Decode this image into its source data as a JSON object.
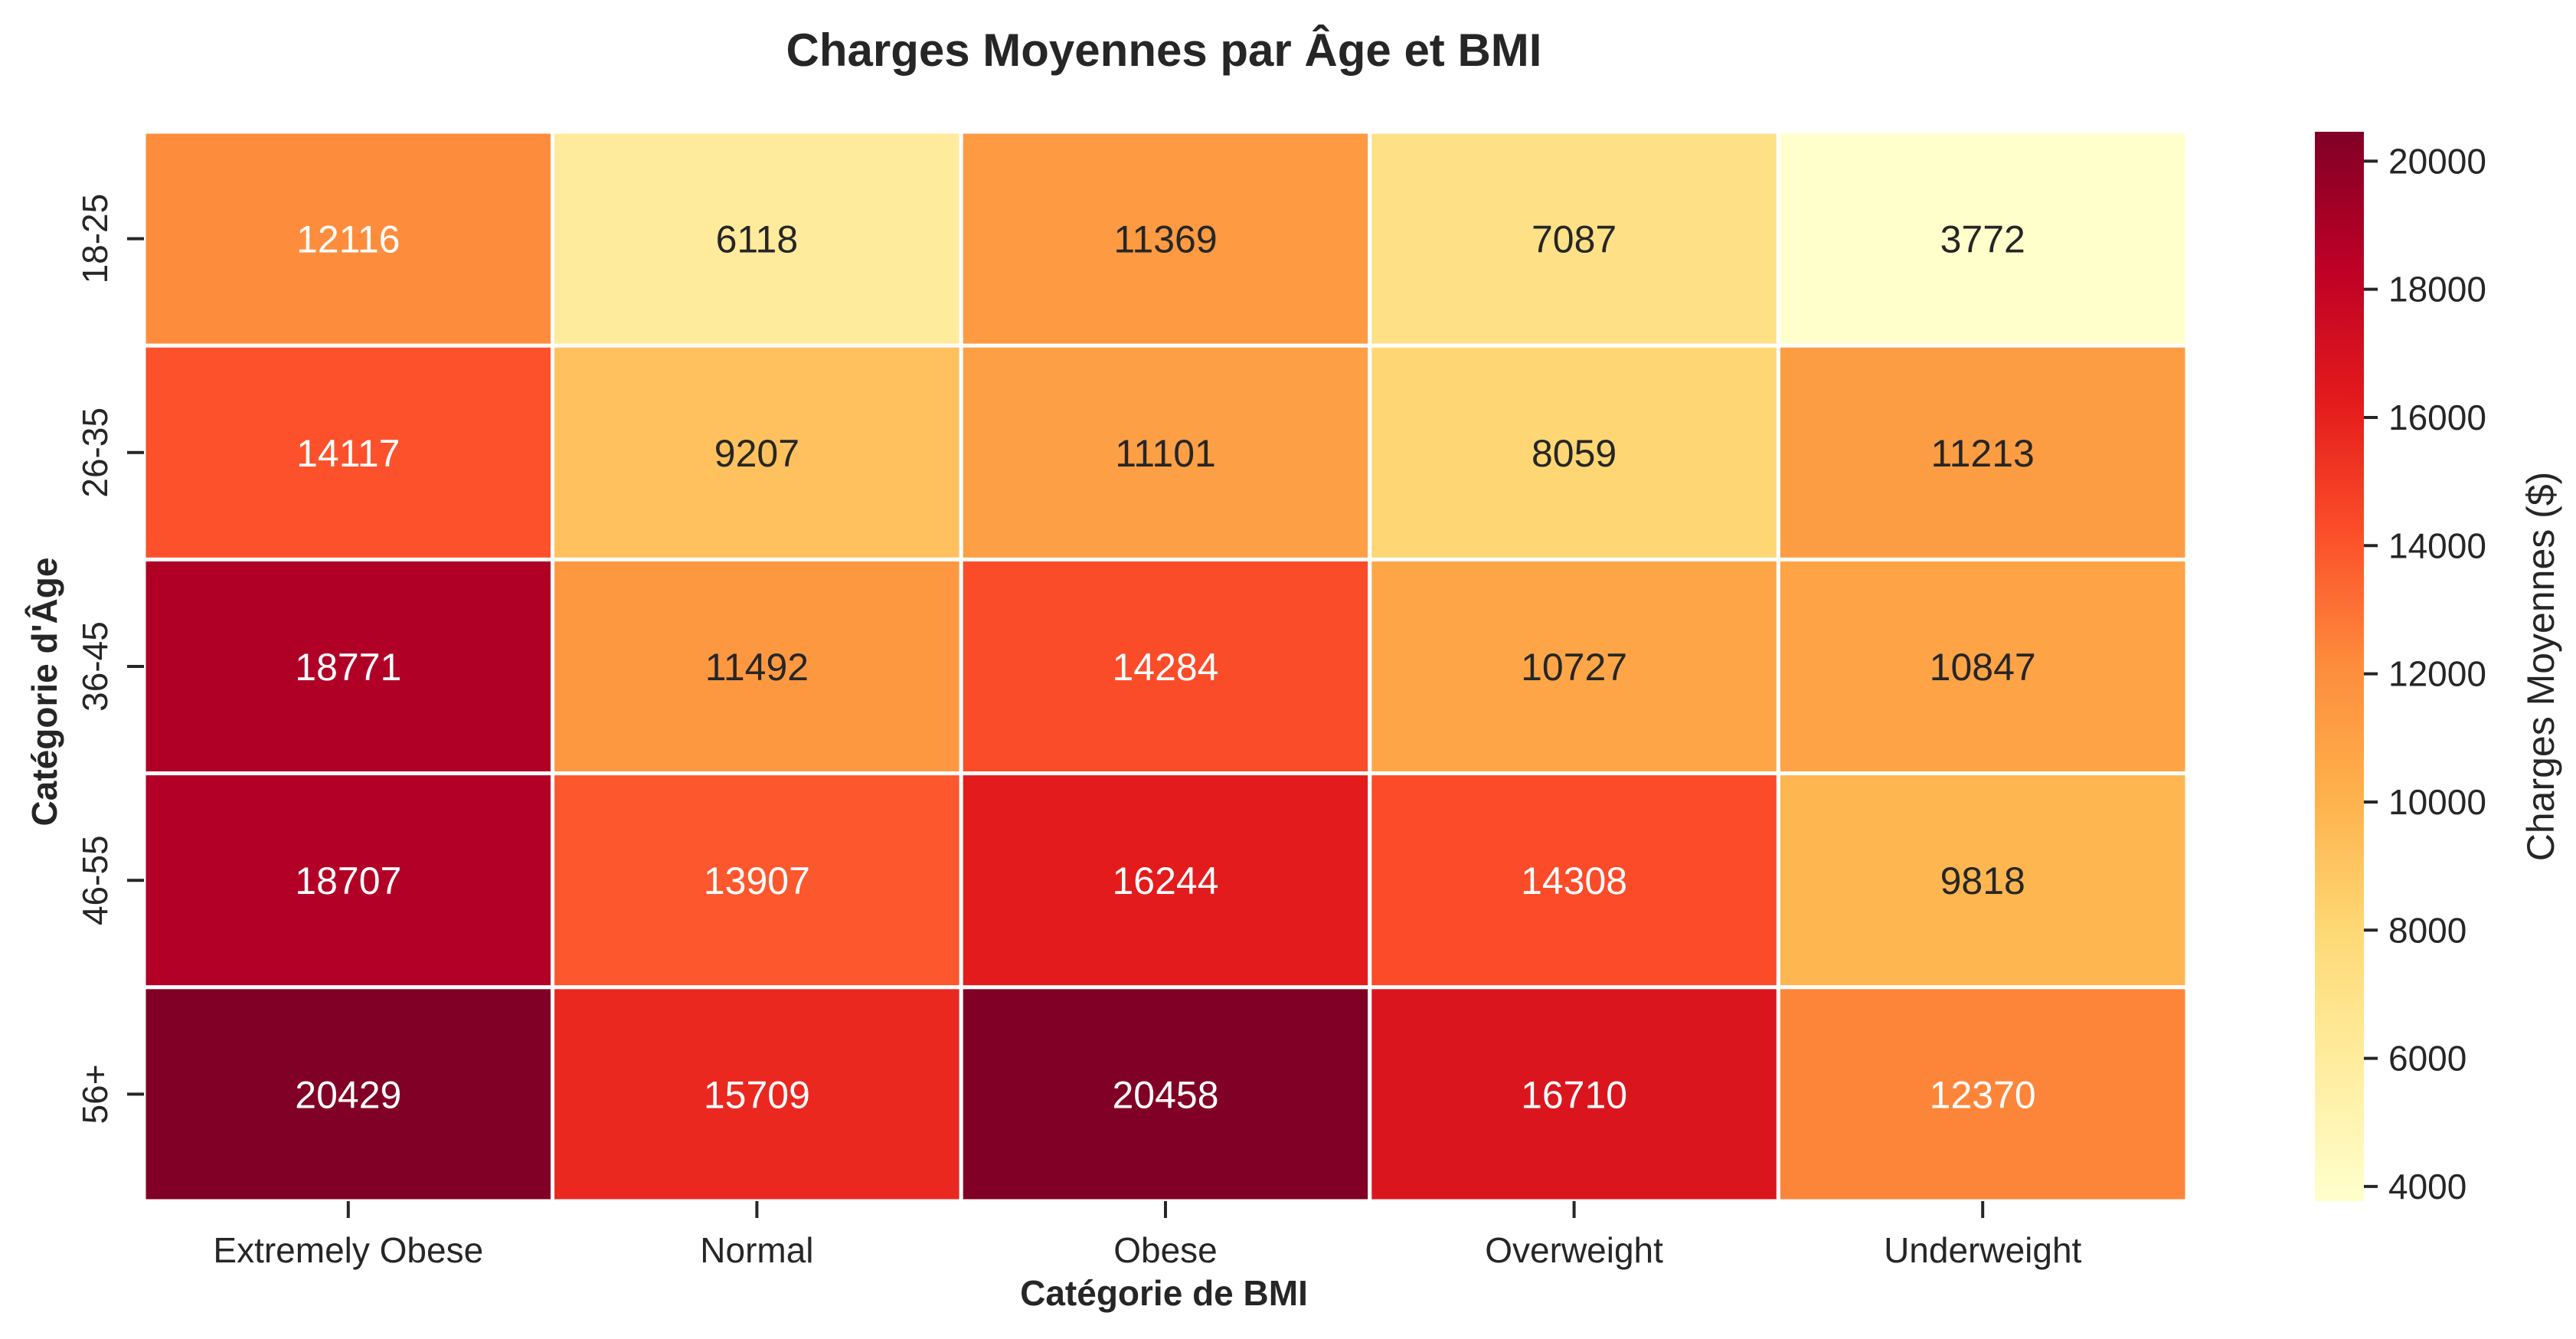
{
  "chart_data": {
    "type": "heatmap",
    "title": "Charges Moyennes par Âge et BMI",
    "xlabel": "Catégorie de BMI",
    "ylabel": "Catégorie d'Âge",
    "x_categories": [
      "Extremely Obese",
      "Normal",
      "Obese",
      "Overweight",
      "Underweight"
    ],
    "y_categories": [
      "18-25",
      "26-35",
      "36-45",
      "46-55",
      "56+"
    ],
    "values": [
      [
        12116,
        6118,
        11369,
        7087,
        3772
      ],
      [
        14117,
        9207,
        11101,
        8059,
        11213
      ],
      [
        18771,
        11492,
        14284,
        10727,
        10847
      ],
      [
        18707,
        13907,
        16244,
        14308,
        9818
      ],
      [
        20429,
        15709,
        20458,
        16710,
        12370
      ]
    ],
    "colorbar": {
      "label": "Charges Moyennes ($)",
      "min": 3772,
      "max": 20458,
      "ticks": [
        4000,
        6000,
        8000,
        10000,
        12000,
        14000,
        16000,
        18000,
        20000
      ]
    },
    "colormap": "YlOrRd",
    "colormap_stops": [
      "#ffffcc",
      "#ffeda0",
      "#fed976",
      "#feb24c",
      "#fd8d3c",
      "#fc4e2a",
      "#e31a1c",
      "#bd0026",
      "#800026"
    ],
    "cell_border_color": "#ffffff",
    "text_color_dark": "#262626",
    "text_color_light": "#ffffff"
  }
}
